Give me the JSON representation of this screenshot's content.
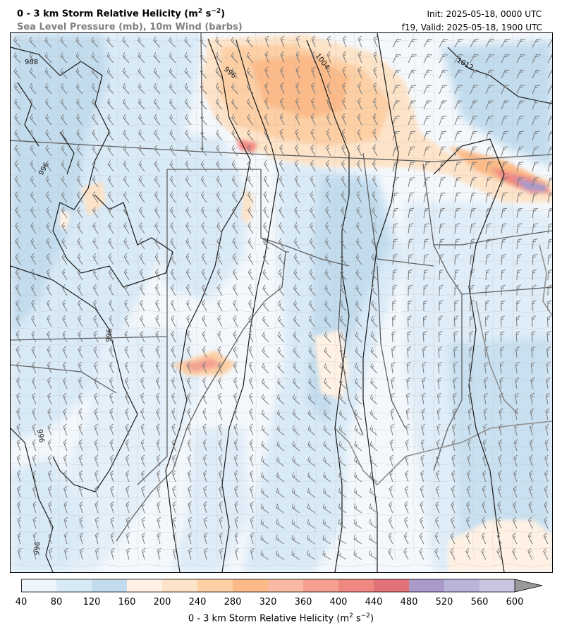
{
  "header": {
    "title_main": "0 - 3 km Storm Relative Helicity (m",
    "title_unit_exp1": "2",
    "title_mid": " s",
    "title_unit_exp2": "−2",
    "title_end": ")",
    "subtitle": "Sea Level Pressure (mb), 10m Wind (barbs)",
    "init": "Init: 2025-05-18, 0000 UTC",
    "valid": "f19, Valid: 2025-05-18, 1900 UTC"
  },
  "map": {
    "isobar_labels": [
      "988",
      "996",
      "1004",
      "1012",
      "996",
      "996",
      "996",
      "996"
    ],
    "colors": {
      "isobar": "#1a1a1a",
      "state_border": "#606060",
      "county_border": "#b8b8b8",
      "coast": "#909090",
      "barb": "#7a7a7a"
    }
  },
  "colorbar": {
    "levels": [
      40,
      80,
      120,
      160,
      200,
      240,
      280,
      320,
      360,
      400,
      440,
      480,
      520,
      560,
      600
    ],
    "tick_labels": [
      "40",
      "80",
      "120",
      "160",
      "200",
      "240",
      "280",
      "320",
      "360",
      "400",
      "440",
      "480",
      "520",
      "560",
      "600"
    ],
    "colors": [
      "#eef5fc",
      "#d9eaf7",
      "#c2dcee",
      "#fff2e4",
      "#fde3c8",
      "#fdcfa4",
      "#fbba88",
      "#f9b9a4",
      "#f5a091",
      "#f08882",
      "#e07278",
      "#a99ac9",
      "#b8b4da",
      "#cac6e2"
    ],
    "extend_color": "#999999",
    "label_main": "0 - 3 km Storm Relative Helicity (m",
    "label_exp1": "2",
    "label_mid": " s",
    "label_exp2": "−2",
    "label_end": ")"
  }
}
